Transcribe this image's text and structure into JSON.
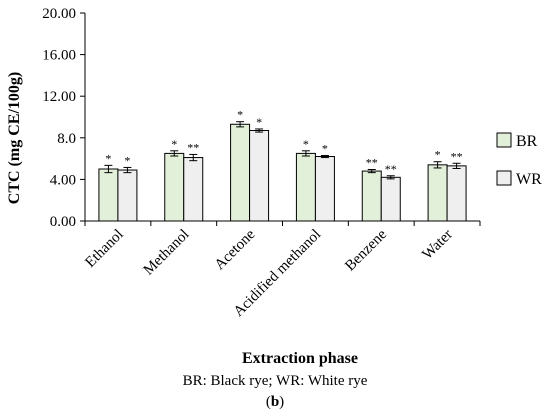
{
  "chart_data": {
    "type": "bar",
    "categories": [
      "Ethanol",
      "Methanol",
      "Acetone",
      "Acidified methanol",
      "Benzene",
      "Water"
    ],
    "series": [
      {
        "name": "BR",
        "values": [
          5.0,
          6.5,
          9.3,
          6.5,
          4.8,
          5.4
        ],
        "errors": [
          0.35,
          0.25,
          0.25,
          0.25,
          0.15,
          0.3
        ],
        "annotations": [
          "*",
          "*",
          "*",
          "*",
          "**",
          "*"
        ],
        "color": "#e2f0d9"
      },
      {
        "name": "WR",
        "values": [
          4.9,
          6.1,
          8.7,
          6.2,
          4.2,
          5.3
        ],
        "errors": [
          0.25,
          0.3,
          0.15,
          0.1,
          0.15,
          0.25
        ],
        "annotations": [
          "*",
          "**",
          "*",
          "*",
          "**",
          "**"
        ],
        "color": "#efefef"
      }
    ],
    "ylabel": "CTC (mg CE/100g)",
    "xlabel": "Extraction phase",
    "ylim": [
      0,
      20
    ],
    "yticks": [
      "0.00",
      "4.00",
      "8.0",
      "12.00",
      "16.00",
      "20.00"
    ],
    "grid": false,
    "legend": "right"
  },
  "caption": {
    "line1": "BR: Black rye; WR: White rye",
    "label": "b"
  }
}
